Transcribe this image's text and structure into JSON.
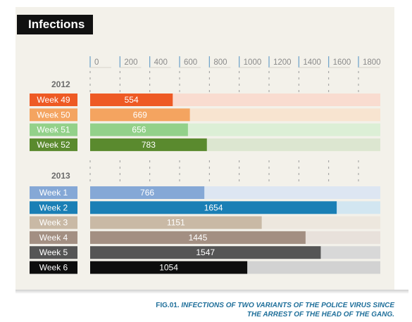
{
  "header": {
    "title": "Infections"
  },
  "caption": {
    "fig_label": "FIG.01.",
    "text_line1": "INFECTIONS OF TWO VARIANTS OF THE POLICE VIRUS SINCE",
    "text_line2": "THE ARREST OF THE HEAD OF THE GANG."
  },
  "chart_data": {
    "type": "bar",
    "orientation": "horizontal",
    "title": "Infections",
    "xlim": [
      0,
      1800
    ],
    "ticks": [
      "0",
      "200",
      "400",
      "600",
      "800",
      "1000",
      "1200",
      "1400",
      "1600",
      "1800"
    ],
    "groups": [
      {
        "label": "2012",
        "bars": [
          {
            "category": "Week 49",
            "value": 554,
            "label": "554",
            "color": "#ee5a24",
            "track": "#f9dcd0"
          },
          {
            "category": "Week 50",
            "value": 669,
            "label": "669",
            "color": "#f4a460",
            "track": "#f8e4d0"
          },
          {
            "category": "Week 51",
            "value": 656,
            "label": "656",
            "color": "#93d18a",
            "track": "#dcefd6"
          },
          {
            "category": "Week 52",
            "value": 783,
            "label": "783",
            "color": "#5a8a2e",
            "track": "#dce6d0"
          }
        ]
      },
      {
        "label": "2013",
        "bars": [
          {
            "category": "Week 1",
            "value": 766,
            "label": "766",
            "color": "#85a8d6",
            "track": "#dde6f2"
          },
          {
            "category": "Week 2",
            "value": 1654,
            "label": "1654",
            "color": "#1a7fb5",
            "track": "#d2e6f1"
          },
          {
            "category": "Week 3",
            "value": 1151,
            "label": "1151",
            "color": "#c9b9a5",
            "track": "#ede7de"
          },
          {
            "category": "Week 4",
            "value": 1445,
            "label": "1445",
            "color": "#a38f82",
            "track": "#e8e1db"
          },
          {
            "category": "Week 5",
            "value": 1547,
            "label": "1547",
            "color": "#555555",
            "track": "#d8d8d8"
          },
          {
            "category": "Week 6",
            "value": 1054,
            "label": "1054",
            "color": "#0d0d0d",
            "track": "#d2d2d2"
          }
        ]
      }
    ]
  }
}
